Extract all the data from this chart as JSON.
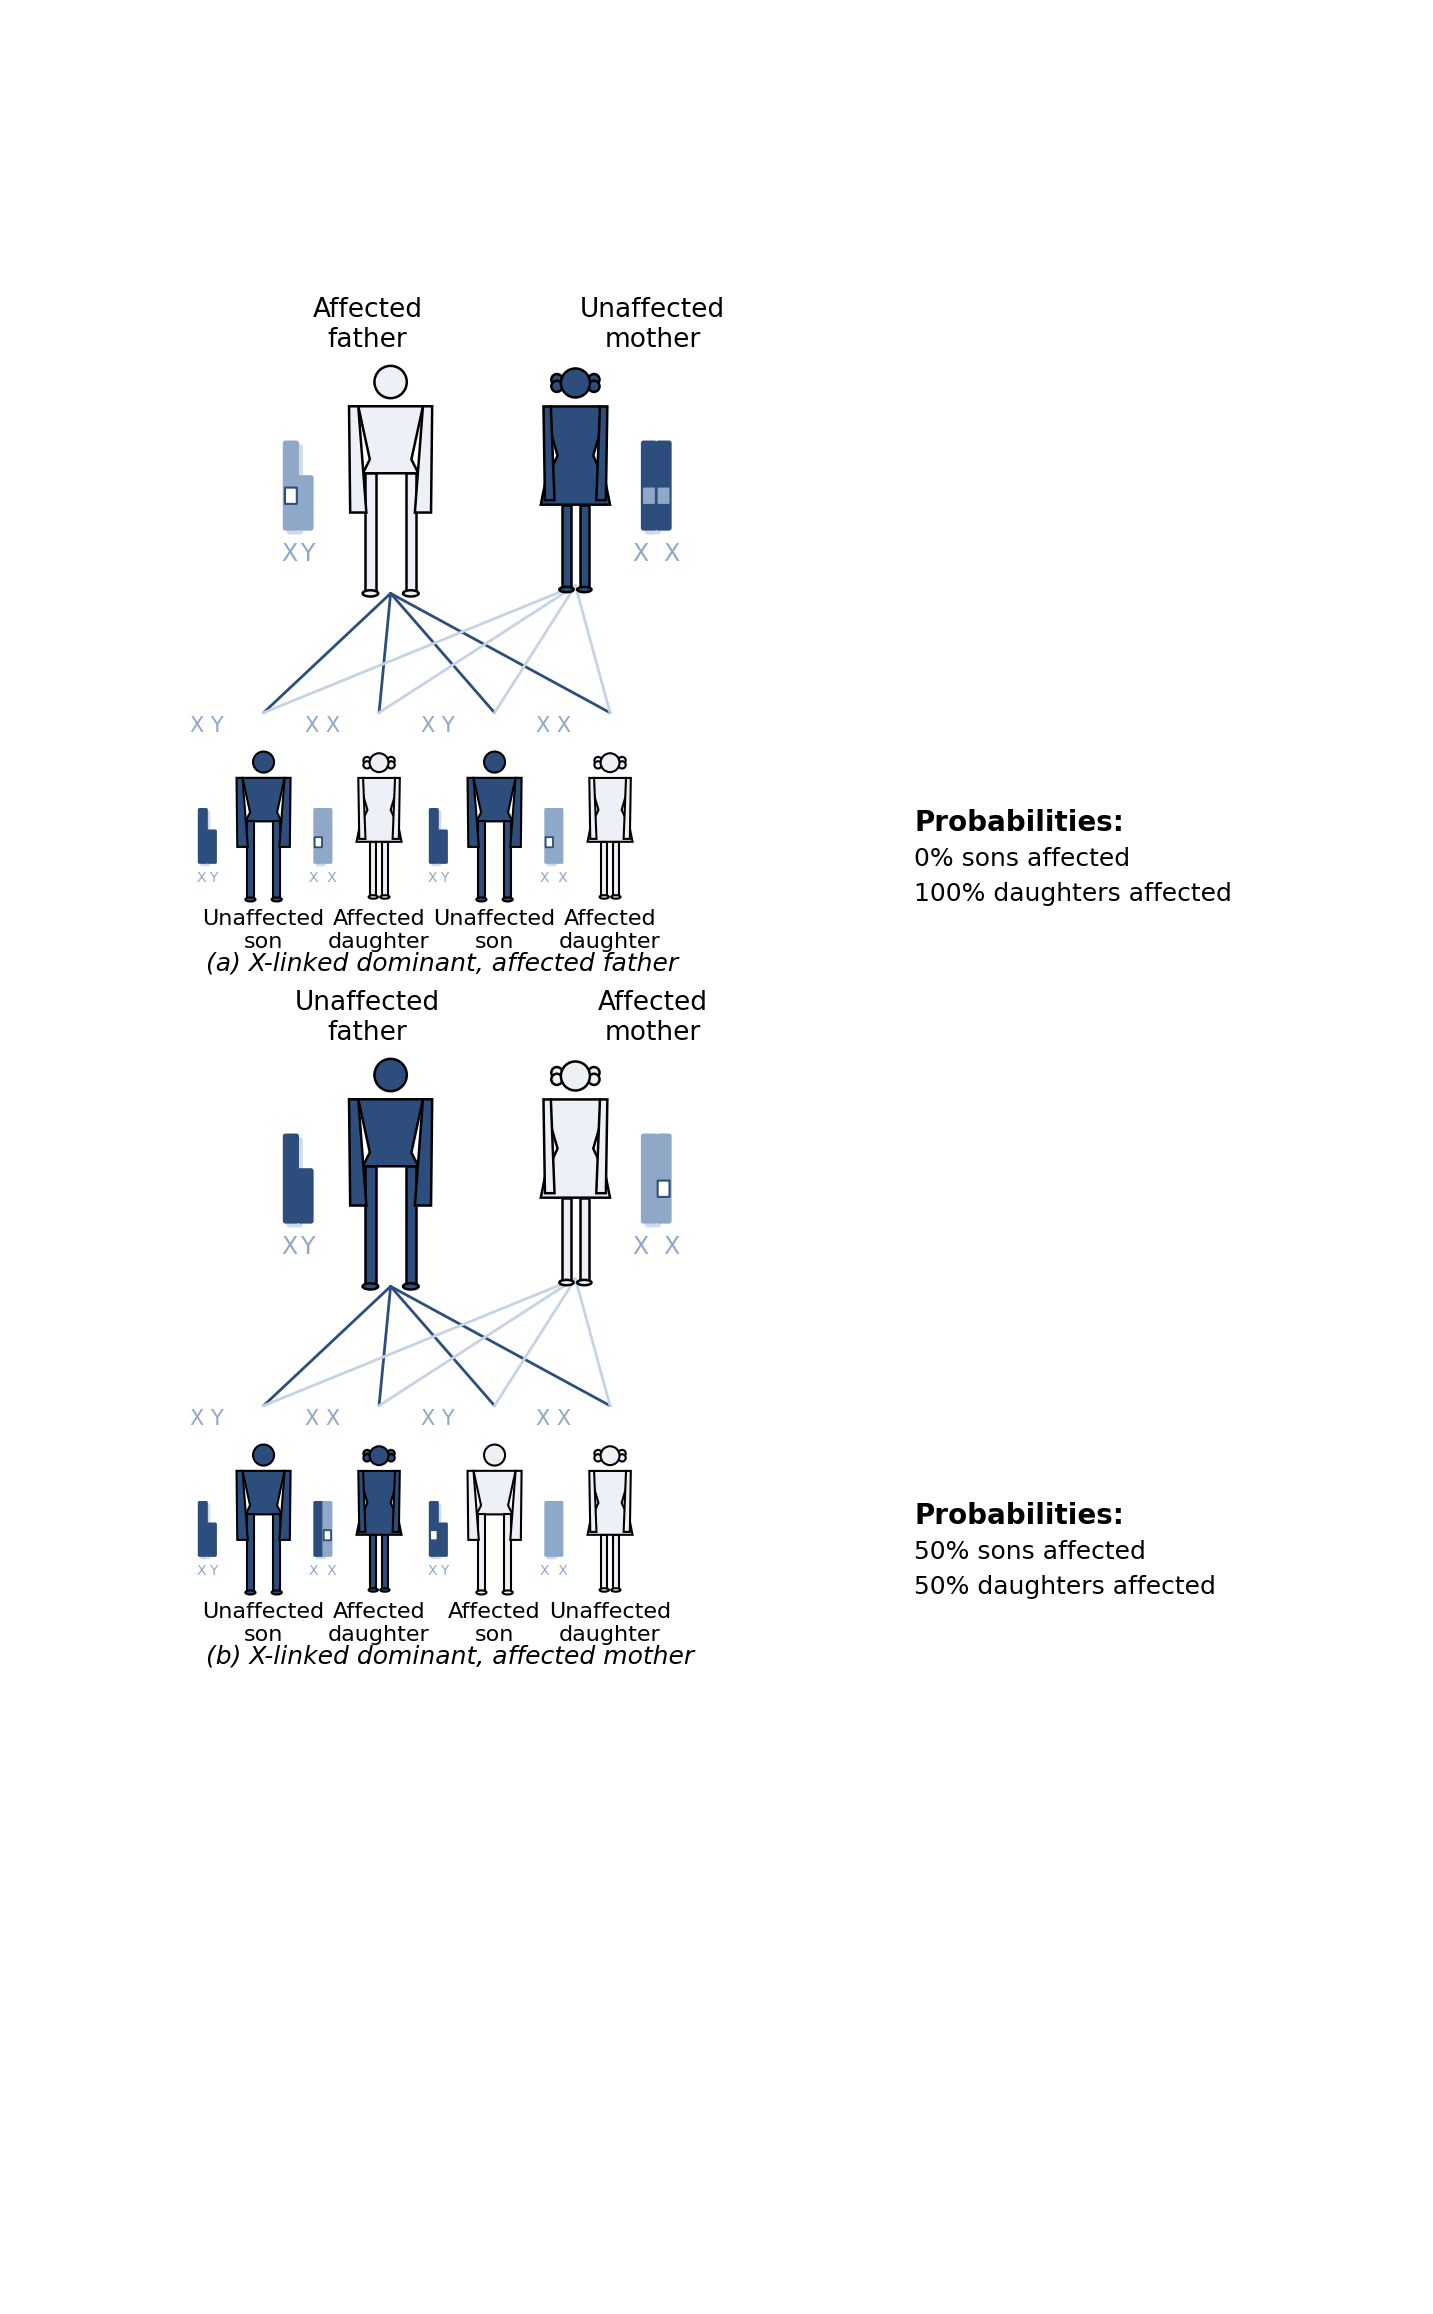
{
  "bg_color": "#ffffff",
  "dark_blue": "#2d4d7d",
  "light_blue": "#8fa8c8",
  "lighter_blue": "#c5d3e3",
  "section_a_label": "(a) X-linked dominant, affected father",
  "section_b_label": "(b) X-linked dominant, affected mother",
  "prob_a_title": "Probabilities:",
  "prob_a_line1": "0% sons affected",
  "prob_a_line2": "100% daughters affected",
  "prob_b_title": "Probabilities:",
  "prob_b_line1": "50% sons affected",
  "prob_b_line2": "50% daughters affected",
  "child_labels_a": [
    "Unaffected\nson",
    "Affected\ndaughter",
    "Unaffected\nson",
    "Affected\ndaughter"
  ],
  "child_labels_b": [
    "Unaffected\nson",
    "Affected\ndaughter",
    "Affected\nson",
    "Unaffected\ndaughter"
  ],
  "fig_width": 14.33,
  "fig_height": 23.14,
  "dpi": 100
}
